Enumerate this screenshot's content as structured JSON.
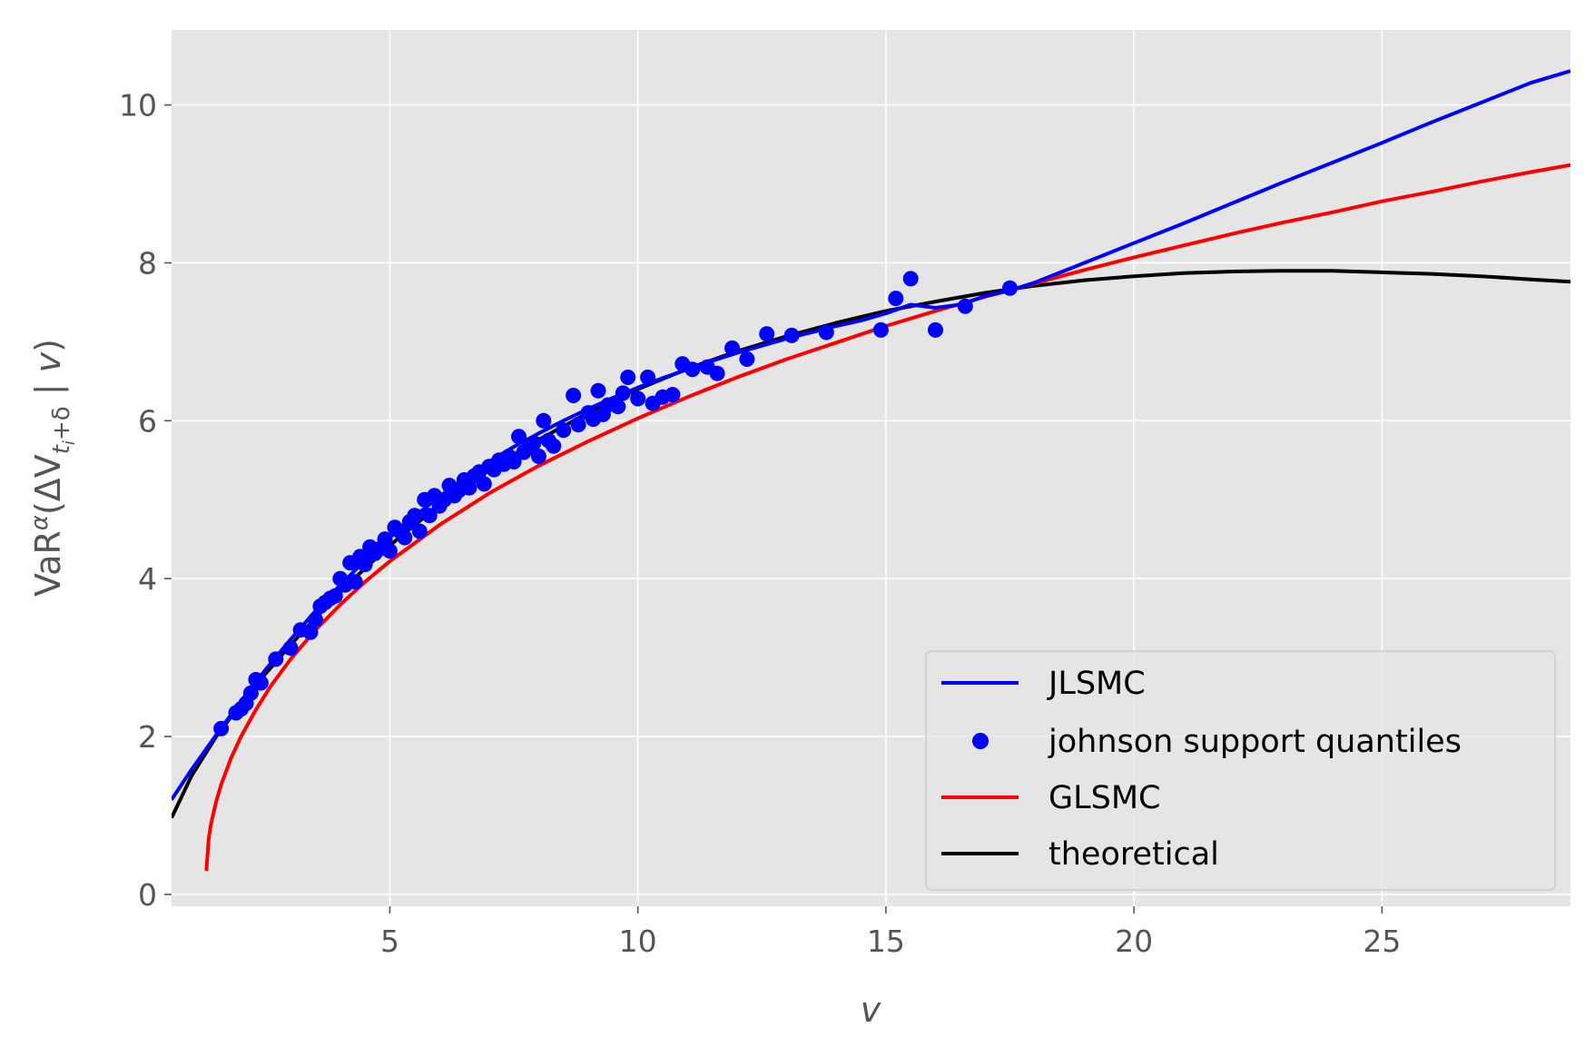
{
  "chart_data": {
    "type": "line",
    "title": "",
    "xlabel": "v",
    "ylabel": "VaR^α(ΔV_{t_i+δ} | v)",
    "ylabel_parts": {
      "var": "VaR",
      "alpha": "α",
      "open": "(ΔV",
      "sub_t": "t",
      "sub_i": "i",
      "sub_rest": "+δ",
      "close": " | ",
      "v": "v",
      "end": ")"
    },
    "xlim": [
      0.6,
      28.8
    ],
    "ylim": [
      -0.15,
      10.95
    ],
    "x_ticks": [
      5,
      10,
      15,
      20,
      25
    ],
    "x_tick_labels": [
      "5",
      "10",
      "15",
      "20",
      "25"
    ],
    "y_ticks": [
      0,
      2,
      4,
      6,
      8,
      10
    ],
    "y_tick_labels": [
      "0",
      "2",
      "4",
      "6",
      "8",
      "10"
    ],
    "grid": true,
    "legend_position": "lower-right",
    "colors": {
      "background": "#e5e5e5",
      "grid": "#ffffff",
      "jlsmc": "#0000ff",
      "glsmc": "#ff0000",
      "theoretical": "#000000"
    },
    "series": [
      {
        "name": "JLSMC",
        "kind": "line",
        "color": "#0000ff",
        "x": [
          0.6,
          1.0,
          1.5,
          2.0,
          2.5,
          3.0,
          3.5,
          4.0,
          4.5,
          5.0,
          5.5,
          6.0,
          6.5,
          7.0,
          7.5,
          8.0,
          8.5,
          9.0,
          9.5,
          10.0,
          10.5,
          11.0,
          11.5,
          12.0,
          12.5,
          13.0,
          13.5,
          14.0,
          14.5,
          15.0,
          15.5,
          16.0,
          16.5,
          17.0,
          17.5,
          18.0,
          19.0,
          20.0,
          21.0,
          22.0,
          23.0,
          24.0,
          25.0,
          26.0,
          27.0,
          28.0,
          28.8
        ],
        "y": [
          1.2,
          1.58,
          2.02,
          2.45,
          2.85,
          3.23,
          3.59,
          3.92,
          4.23,
          4.52,
          4.79,
          5.04,
          5.27,
          5.48,
          5.67,
          5.84,
          6.0,
          6.15,
          6.29,
          6.42,
          6.54,
          6.65,
          6.76,
          6.86,
          6.95,
          7.04,
          7.12,
          7.2,
          7.27,
          7.36,
          7.47,
          7.43,
          7.47,
          7.58,
          7.65,
          7.75,
          8.0,
          8.25,
          8.5,
          8.76,
          9.02,
          9.27,
          9.52,
          9.78,
          10.03,
          10.28,
          10.43
        ]
      },
      {
        "name": "johnson support quantiles",
        "kind": "scatter",
        "color": "#0000ff",
        "x": [
          1.6,
          1.9,
          2.0,
          2.1,
          2.2,
          2.3,
          2.4,
          2.7,
          3.0,
          3.2,
          3.4,
          3.5,
          3.6,
          3.7,
          3.8,
          3.9,
          4.0,
          4.1,
          4.2,
          4.3,
          4.4,
          4.5,
          4.6,
          4.7,
          4.8,
          4.9,
          5.0,
          5.1,
          5.2,
          5.3,
          5.4,
          5.5,
          5.6,
          5.7,
          5.8,
          5.9,
          6.0,
          6.1,
          6.2,
          6.3,
          6.4,
          6.5,
          6.6,
          6.7,
          6.8,
          6.9,
          7.0,
          7.1,
          7.2,
          7.3,
          7.4,
          7.5,
          7.6,
          7.7,
          7.8,
          7.9,
          8.0,
          8.1,
          8.2,
          8.3,
          8.5,
          8.7,
          8.8,
          9.0,
          9.1,
          9.2,
          9.3,
          9.4,
          9.6,
          9.7,
          9.8,
          10.0,
          10.2,
          10.3,
          10.5,
          10.7,
          10.9,
          11.1,
          11.4,
          11.6,
          11.9,
          12.2,
          12.6,
          13.1,
          13.8,
          14.9,
          15.2,
          15.5,
          16.0,
          16.6,
          17.5
        ],
        "y": [
          2.1,
          2.3,
          2.35,
          2.42,
          2.55,
          2.72,
          2.68,
          2.98,
          3.12,
          3.35,
          3.32,
          3.48,
          3.65,
          3.7,
          3.75,
          3.78,
          4.0,
          3.92,
          4.2,
          3.96,
          4.28,
          4.18,
          4.4,
          4.32,
          4.38,
          4.5,
          4.35,
          4.65,
          4.6,
          4.52,
          4.72,
          4.8,
          4.6,
          5.0,
          4.8,
          5.05,
          4.92,
          5.0,
          5.18,
          5.05,
          5.12,
          5.25,
          5.15,
          5.3,
          5.35,
          5.2,
          5.42,
          5.38,
          5.5,
          5.45,
          5.55,
          5.48,
          5.8,
          5.6,
          5.65,
          5.72,
          5.55,
          6.0,
          5.75,
          5.68,
          5.88,
          6.32,
          5.95,
          6.1,
          6.02,
          6.38,
          6.08,
          6.2,
          6.18,
          6.35,
          6.55,
          6.28,
          6.55,
          6.22,
          6.3,
          6.33,
          6.72,
          6.65,
          6.68,
          6.6,
          6.92,
          6.78,
          7.1,
          7.08,
          7.12,
          7.15,
          7.55,
          7.8,
          7.15,
          7.45,
          7.68
        ]
      },
      {
        "name": "GLSMC",
        "kind": "line",
        "color": "#ff0000",
        "x": [
          1.3,
          1.35,
          1.4,
          1.5,
          1.6,
          1.8,
          2.0,
          2.3,
          2.6,
          3.0,
          3.5,
          4.0,
          4.5,
          5.0,
          6.0,
          7.0,
          8.0,
          9.0,
          10.0,
          11.0,
          12.0,
          13.0,
          14.0,
          15.0,
          16.0,
          17.0,
          18.0,
          19.0,
          20.0,
          21.0,
          22.0,
          23.0,
          24.0,
          25.0,
          26.0,
          27.0,
          28.0,
          28.8
        ],
        "y": [
          0.3,
          0.72,
          0.91,
          1.18,
          1.39,
          1.73,
          2.0,
          2.34,
          2.64,
          2.98,
          3.35,
          3.67,
          3.96,
          4.22,
          4.68,
          5.08,
          5.43,
          5.74,
          6.03,
          6.3,
          6.55,
          6.78,
          6.99,
          7.2,
          7.39,
          7.57,
          7.74,
          7.91,
          8.07,
          8.22,
          8.37,
          8.51,
          8.64,
          8.78,
          8.9,
          9.03,
          9.15,
          9.24
        ]
      },
      {
        "name": "theoretical",
        "kind": "line",
        "color": "#000000",
        "x": [
          0.6,
          1.0,
          1.5,
          2.0,
          2.5,
          3.0,
          3.5,
          4.0,
          4.5,
          5.0,
          5.5,
          6.0,
          7.0,
          8.0,
          9.0,
          10.0,
          11.0,
          12.0,
          13.0,
          14.0,
          15.0,
          16.0,
          17.0,
          18.0,
          19.0,
          20.0,
          21.0,
          22.0,
          23.0,
          24.0,
          25.0,
          26.0,
          27.0,
          28.0,
          28.8
        ],
        "y": [
          0.97,
          1.5,
          2.0,
          2.42,
          2.8,
          3.16,
          3.5,
          3.83,
          4.13,
          4.42,
          4.68,
          4.93,
          5.38,
          5.76,
          6.1,
          6.4,
          6.66,
          6.88,
          7.07,
          7.24,
          7.39,
          7.51,
          7.62,
          7.71,
          7.78,
          7.83,
          7.87,
          7.89,
          7.9,
          7.9,
          7.88,
          7.86,
          7.83,
          7.79,
          7.76
        ]
      }
    ]
  }
}
